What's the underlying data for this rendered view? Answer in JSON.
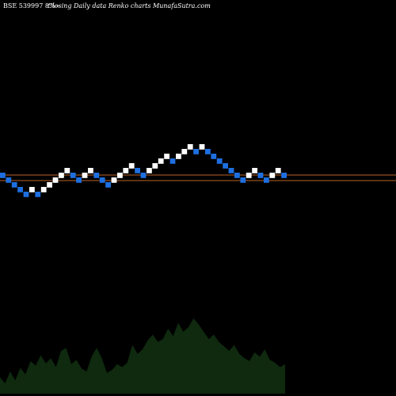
{
  "header": {
    "symbol": "BSE 539997 8%~",
    "subtitle": "Closing Daily data  Renko  charts MunafaSutra.com"
  },
  "colors": {
    "background": "#000000",
    "up_brick": "#ffffff",
    "down_brick": "#1e6fe0",
    "reference_line": "#b8642a",
    "volume_fill": "#0f2a0f",
    "volume_label": "#ffffff"
  },
  "chart_data": {
    "type": "renko",
    "bricks": [
      {
        "col": 0,
        "level": 0,
        "dir": "down"
      },
      {
        "col": 1,
        "level": -1,
        "dir": "down"
      },
      {
        "col": 2,
        "level": -2,
        "dir": "down"
      },
      {
        "col": 3,
        "level": -3,
        "dir": "down"
      },
      {
        "col": 4,
        "level": -4,
        "dir": "down"
      },
      {
        "col": 5,
        "level": -3,
        "dir": "up"
      },
      {
        "col": 6,
        "level": -4,
        "dir": "down"
      },
      {
        "col": 7,
        "level": -3,
        "dir": "up"
      },
      {
        "col": 8,
        "level": -2,
        "dir": "up"
      },
      {
        "col": 9,
        "level": -1,
        "dir": "up"
      },
      {
        "col": 10,
        "level": 0,
        "dir": "up"
      },
      {
        "col": 11,
        "level": 1,
        "dir": "up"
      },
      {
        "col": 12,
        "level": 0,
        "dir": "down"
      },
      {
        "col": 13,
        "level": -1,
        "dir": "down"
      },
      {
        "col": 14,
        "level": 0,
        "dir": "up"
      },
      {
        "col": 15,
        "level": 1,
        "dir": "up"
      },
      {
        "col": 16,
        "level": 0,
        "dir": "down"
      },
      {
        "col": 17,
        "level": -1,
        "dir": "down"
      },
      {
        "col": 18,
        "level": -2,
        "dir": "down"
      },
      {
        "col": 19,
        "level": -1,
        "dir": "up"
      },
      {
        "col": 20,
        "level": 0,
        "dir": "up"
      },
      {
        "col": 21,
        "level": 1,
        "dir": "up"
      },
      {
        "col": 22,
        "level": 2,
        "dir": "up"
      },
      {
        "col": 23,
        "level": 1,
        "dir": "down"
      },
      {
        "col": 24,
        "level": 0,
        "dir": "down"
      },
      {
        "col": 25,
        "level": 1,
        "dir": "up"
      },
      {
        "col": 26,
        "level": 2,
        "dir": "up"
      },
      {
        "col": 27,
        "level": 3,
        "dir": "up"
      },
      {
        "col": 28,
        "level": 4,
        "dir": "up"
      },
      {
        "col": 29,
        "level": 3,
        "dir": "down"
      },
      {
        "col": 30,
        "level": 4,
        "dir": "up"
      },
      {
        "col": 31,
        "level": 5,
        "dir": "up"
      },
      {
        "col": 32,
        "level": 6,
        "dir": "up"
      },
      {
        "col": 33,
        "level": 5,
        "dir": "down"
      },
      {
        "col": 34,
        "level": 6,
        "dir": "up"
      },
      {
        "col": 35,
        "level": 5,
        "dir": "down"
      },
      {
        "col": 36,
        "level": 4,
        "dir": "down"
      },
      {
        "col": 37,
        "level": 3,
        "dir": "down"
      },
      {
        "col": 38,
        "level": 2,
        "dir": "down"
      },
      {
        "col": 39,
        "level": 1,
        "dir": "down"
      },
      {
        "col": 40,
        "level": 0,
        "dir": "down"
      },
      {
        "col": 41,
        "level": -1,
        "dir": "down"
      },
      {
        "col": 42,
        "level": 0,
        "dir": "up"
      },
      {
        "col": 43,
        "level": 1,
        "dir": "up"
      },
      {
        "col": 44,
        "level": 0,
        "dir": "down"
      },
      {
        "col": 45,
        "level": -1,
        "dir": "down"
      },
      {
        "col": 46,
        "level": 0,
        "dir": "up"
      },
      {
        "col": 47,
        "level": 1,
        "dir": "up"
      },
      {
        "col": 48,
        "level": 0,
        "dir": "down"
      }
    ],
    "volume_profile": [
      22,
      14,
      30,
      18,
      35,
      26,
      44,
      38,
      52,
      41,
      48,
      36,
      58,
      62,
      40,
      46,
      34,
      30,
      50,
      62,
      48,
      28,
      32,
      40,
      36,
      42,
      66,
      54,
      60,
      72,
      80,
      70,
      74,
      88,
      78,
      96,
      84,
      90,
      102,
      94,
      84,
      74,
      80,
      70,
      64,
      58,
      66,
      54,
      48,
      44,
      56,
      50,
      60,
      46,
      42,
      36,
      40
    ]
  }
}
